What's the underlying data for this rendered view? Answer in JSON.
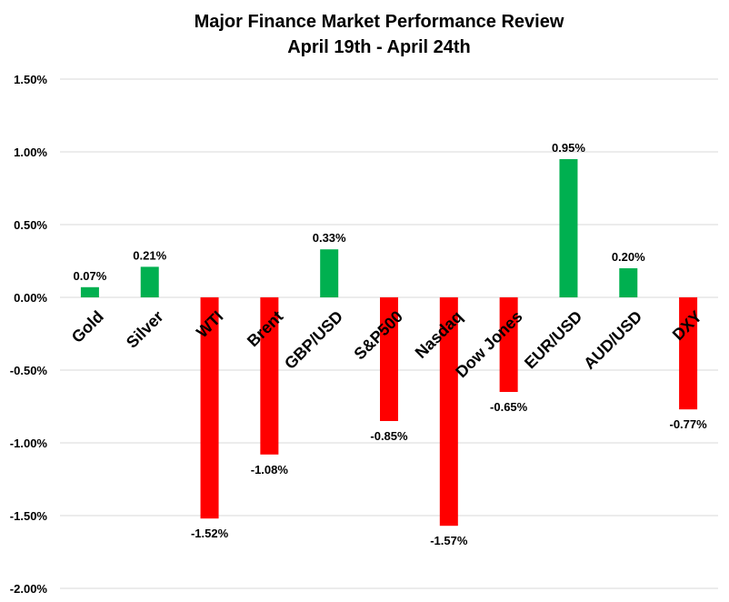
{
  "chart_data": {
    "type": "bar",
    "title": [
      "Major Finance Market Performance Review",
      "April 19th - April 24th"
    ],
    "xlabel": "",
    "ylabel": "",
    "ylim": [
      -2.0,
      1.5
    ],
    "yticks": [
      1.5,
      1.0,
      0.5,
      0.0,
      -0.5,
      -1.0,
      -1.5,
      -2.0
    ],
    "ytick_labels": [
      "1.50%",
      "1.00%",
      "0.50%",
      "0.00%",
      "-0.50%",
      "-1.00%",
      "-1.50%",
      "-2.00%"
    ],
    "grid": true,
    "categories": [
      "Gold",
      "Silver",
      "WTI",
      "Brent",
      "GBP/USD",
      "S&P500",
      "Nasdaq",
      "Dow Jones",
      "EUR/USD",
      "AUD/USD",
      "DXY"
    ],
    "values": [
      0.07,
      0.21,
      -1.52,
      -1.08,
      0.33,
      -0.85,
      -1.57,
      -0.65,
      0.95,
      0.2,
      -0.77
    ],
    "data_labels": [
      "0.07%",
      "0.21%",
      "-1.52%",
      "-1.08%",
      "0.33%",
      "-0.85%",
      "-1.57%",
      "-0.65%",
      "0.95%",
      "0.20%",
      "-0.77%"
    ],
    "colors": {
      "positive": "#00B050",
      "negative": "#FF0000",
      "grid": "#D9D9D9"
    }
  }
}
